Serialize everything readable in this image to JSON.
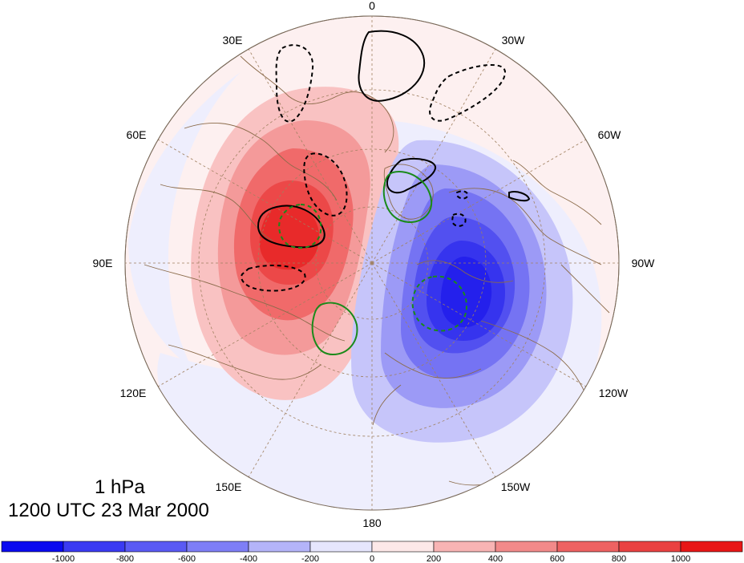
{
  "map": {
    "projection": "polar-stereographic-north",
    "longitude_labels": [
      {
        "text": "0",
        "lon": 0
      },
      {
        "text": "30W",
        "lon": -30
      },
      {
        "text": "60W",
        "lon": -60
      },
      {
        "text": "90W",
        "lon": -90
      },
      {
        "text": "120W",
        "lon": -120
      },
      {
        "text": "150W",
        "lon": -150
      },
      {
        "text": "180",
        "lon": 180
      },
      {
        "text": "150E",
        "lon": 150
      },
      {
        "text": "120E",
        "lon": 120
      },
      {
        "text": "90E",
        "lon": 90
      },
      {
        "text": "60E",
        "lon": 60
      },
      {
        "text": "30E",
        "lon": 30
      }
    ],
    "fill_colors": {
      "neg_1200": "#1a14f0",
      "neg_1000": "#3b36f2",
      "neg_800": "#5c58f3",
      "neg_600": "#7e7bf5",
      "neg_400": "#a6a4f8",
      "neg_200": "#d9d8fc",
      "pos_0": "#fde6e6",
      "pos_200": "#f9b4b4",
      "pos_400": "#f48888",
      "pos_600": "#f06262",
      "pos_800": "#ec4444",
      "pos_1000": "#e81e1e"
    },
    "coastline_color": "#8b6b4a",
    "grid_color": "#a08060"
  },
  "title": {
    "level": "1 hPa",
    "time": "1200 UTC 23 Mar 2000"
  },
  "colorbar": {
    "tick_labels": [
      "-1000",
      "-800",
      "-600",
      "-400",
      "-200",
      "0",
      "200",
      "400",
      "600",
      "800",
      "1000"
    ],
    "colors": [
      "#0a0af0",
      "#3a3af2",
      "#5a5af4",
      "#7e7ef6",
      "#b4b4f9",
      "#e6e6fd",
      "#fde8e8",
      "#f8b4b4",
      "#f28a8a",
      "#ee6262",
      "#ea4242",
      "#e81616"
    ]
  }
}
